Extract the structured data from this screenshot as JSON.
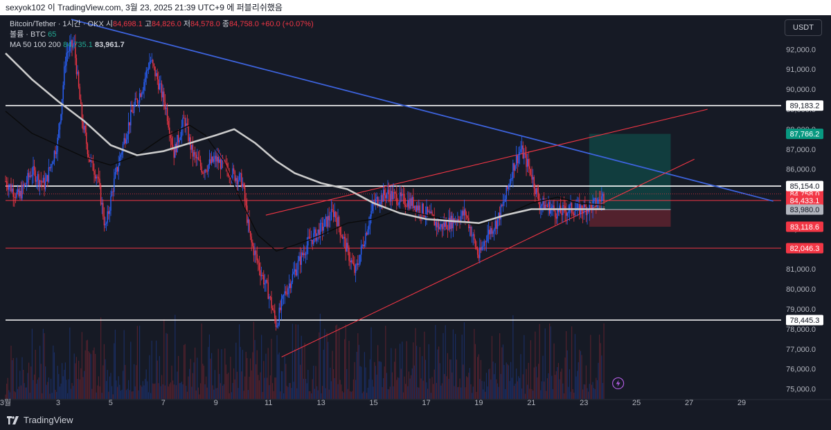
{
  "header": {
    "text": "sexyok102 이 TradingView.com, 3월 23, 2025 21:39 UTC+9 에 퍼블리쉬했음"
  },
  "legend": {
    "line1": {
      "symbol": "Bitcoin/Tether · 1시간 · OKX",
      "open_label": "시",
      "open": "84,698.1",
      "high_label": "고",
      "high": "84,826.0",
      "low_label": "저",
      "low": "84,578.0",
      "close_label": "종",
      "close": "84,758.0",
      "change": "+60.0 (+0.07%)"
    },
    "line2": {
      "label": "볼륨 · BTC",
      "value": "65"
    },
    "line3": {
      "label": "MA 50 100 200",
      "value1": "84,735.1",
      "value2": "83,961.7"
    }
  },
  "currency_button": "USDT",
  "footer_brand": "TradingView",
  "colors": {
    "background": "#161a25",
    "up": "#2962ff",
    "down": "#f23645",
    "white_level": "#ffffff",
    "red_level": "#f23645",
    "trendline": "#3d63dd",
    "ma_fast": "#0a0a0a",
    "ma_slow": "#cccccc"
  },
  "chart_data": {
    "type": "candlestick",
    "title": "Bitcoin/Tether · 1시간 · OKX",
    "y_axis_ticks": [
      "92,000.0",
      "91,000.0",
      "90,000.0",
      "89,000.0",
      "88,000.0",
      "87,000.0",
      "86,000.0",
      "85,000.0",
      "84,000.0",
      "83,000.0",
      "82,000.0",
      "81,000.0",
      "80,000.0",
      "79,000.0",
      "78,000.0",
      "77,000.0",
      "76,000.0",
      "75,000.0"
    ],
    "y_range": [
      74500,
      92600
    ],
    "x_axis_ticks": [
      {
        "label": "3월",
        "day": 1
      },
      {
        "label": "3",
        "day": 3
      },
      {
        "label": "5",
        "day": 5
      },
      {
        "label": "7",
        "day": 7
      },
      {
        "label": "9",
        "day": 9
      },
      {
        "label": "11",
        "day": 11
      },
      {
        "label": "13",
        "day": 13
      },
      {
        "label": "15",
        "day": 15
      },
      {
        "label": "17",
        "day": 17
      },
      {
        "label": "19",
        "day": 19
      },
      {
        "label": "21",
        "day": 21
      },
      {
        "label": "23",
        "day": 23
      },
      {
        "label": "25",
        "day": 25
      },
      {
        "label": "27",
        "day": 27
      },
      {
        "label": "29",
        "day": 29
      }
    ],
    "x_range_days": [
      1,
      30.5
    ],
    "price_path": [
      [
        1,
        85400
      ],
      [
        1.5,
        84600
      ],
      [
        2,
        85900
      ],
      [
        2.5,
        85200
      ],
      [
        3,
        87500
      ],
      [
        3.3,
        91800
      ],
      [
        3.6,
        92300
      ],
      [
        3.9,
        88500
      ],
      [
        4.2,
        86500
      ],
      [
        4.5,
        85600
      ],
      [
        4.8,
        83000
      ],
      [
        5.1,
        85200
      ],
      [
        5.5,
        87400
      ],
      [
        5.8,
        88800
      ],
      [
        6.2,
        90100
      ],
      [
        6.5,
        91500
      ],
      [
        6.8,
        90400
      ],
      [
        7.1,
        89100
      ],
      [
        7.4,
        86800
      ],
      [
        7.8,
        88500
      ],
      [
        8.1,
        86800
      ],
      [
        8.5,
        86000
      ],
      [
        9,
        86500
      ],
      [
        9.5,
        85900
      ],
      [
        10,
        85400
      ],
      [
        10.3,
        82500
      ],
      [
        10.7,
        80900
      ],
      [
        11,
        79800
      ],
      [
        11.3,
        78200
      ],
      [
        11.6,
        79700
      ],
      [
        12,
        80900
      ],
      [
        12.5,
        82300
      ],
      [
        13,
        83000
      ],
      [
        13.5,
        83900
      ],
      [
        14,
        81900
      ],
      [
        14.3,
        80800
      ],
      [
        14.6,
        82300
      ],
      [
        15,
        84300
      ],
      [
        15.5,
        84800
      ],
      [
        16,
        84500
      ],
      [
        16.5,
        84300
      ],
      [
        17,
        83800
      ],
      [
        17.5,
        83100
      ],
      [
        18,
        83400
      ],
      [
        18.5,
        83800
      ],
      [
        19,
        81600
      ],
      [
        19.3,
        82700
      ],
      [
        19.7,
        83400
      ],
      [
        20,
        84500
      ],
      [
        20.3,
        86100
      ],
      [
        20.6,
        87000
      ],
      [
        21,
        85800
      ],
      [
        21.3,
        84300
      ],
      [
        21.7,
        84100
      ],
      [
        22,
        83800
      ],
      [
        22.5,
        84000
      ],
      [
        23,
        84000
      ],
      [
        23.5,
        84300
      ],
      [
        23.8,
        84758
      ]
    ],
    "series": [
      {
        "name": "MA 50",
        "points": [
          [
            1,
            88900
          ],
          [
            2,
            87800
          ],
          [
            3,
            87200
          ],
          [
            4,
            86600
          ],
          [
            5,
            86200
          ],
          [
            6,
            86700
          ],
          [
            7,
            87600
          ],
          [
            8,
            88200
          ],
          [
            8.6,
            87700
          ],
          [
            9.3,
            86400
          ],
          [
            10,
            84300
          ],
          [
            10.6,
            82700
          ],
          [
            11.3,
            81900
          ],
          [
            12,
            82200
          ],
          [
            13,
            82700
          ],
          [
            14,
            83300
          ],
          [
            15,
            83500
          ],
          [
            16,
            84000
          ],
          [
            17,
            83700
          ],
          [
            18,
            83400
          ],
          [
            19,
            83200
          ],
          [
            20,
            83700
          ],
          [
            21,
            84300
          ],
          [
            22,
            84600
          ],
          [
            22.8,
            84300
          ],
          [
            23.8,
            84200
          ]
        ]
      },
      {
        "name": "MA 100",
        "points": [
          [
            1,
            91800
          ],
          [
            2,
            90500
          ],
          [
            3,
            89400
          ],
          [
            4,
            88400
          ],
          [
            5,
            87200
          ],
          [
            6,
            86700
          ],
          [
            7,
            86900
          ],
          [
            8,
            87300
          ],
          [
            9,
            87700
          ],
          [
            9.7,
            88000
          ],
          [
            10.5,
            87300
          ],
          [
            11.3,
            86400
          ],
          [
            12,
            85800
          ],
          [
            13,
            85300
          ],
          [
            14,
            85000
          ],
          [
            15,
            84300
          ],
          [
            16,
            83800
          ],
          [
            17,
            83500
          ],
          [
            18,
            83400
          ],
          [
            19,
            83300
          ],
          [
            20,
            83700
          ],
          [
            21,
            84000
          ],
          [
            22,
            84000
          ],
          [
            23,
            84000
          ],
          [
            23.8,
            84000
          ]
        ]
      }
    ],
    "volume_note": "BTC volume histogram",
    "horizontal_levels": [
      {
        "price": 89183.2,
        "label": "89,183.2",
        "color": "white"
      },
      {
        "price": 85154.0,
        "label": "85,154.0",
        "color": "white"
      },
      {
        "price": 84433.1,
        "label": "84,433.1",
        "color": "red"
      },
      {
        "price": 82046.3,
        "label": "82,046.3",
        "color": "red"
      },
      {
        "price": 78445.3,
        "label": "78,445.3",
        "color": "white"
      }
    ],
    "price_labels": [
      {
        "label": "87,766.2",
        "price": 87766.2,
        "color": "#089981"
      },
      {
        "label": "84,758.0",
        "sub": "21:00",
        "price": 84758.0,
        "color": "#f23645"
      },
      {
        "label": "84,433.1",
        "price": 84433.1,
        "color": "#f23645"
      },
      {
        "label": "83,980.0",
        "price": 83980.0,
        "color": "#b2b5be"
      },
      {
        "label": "83,118.6",
        "price": 83118.6,
        "color": "#f23645"
      },
      {
        "label": "89,183.2",
        "price": 89183.2,
        "color": "#ffffff"
      },
      {
        "label": "85,154.0",
        "price": 85154.0,
        "color": "#ffffff"
      },
      {
        "label": "82,046.3",
        "price": 82046.3,
        "color": "#f23645"
      },
      {
        "label": "78,445.3",
        "price": 78445.3,
        "color": "#ffffff"
      }
    ],
    "trendlines": [
      {
        "name": "descending",
        "from": [
          3.5,
          93500
        ],
        "to": [
          30.2,
          84400
        ],
        "color": "blue"
      },
      {
        "name": "upper wedge",
        "from": [
          10.9,
          83700
        ],
        "to": [
          27.7,
          89000
        ],
        "color": "red"
      },
      {
        "name": "lower wedge",
        "from": [
          11.5,
          76600
        ],
        "to": [
          27.2,
          86500
        ],
        "color": "red"
      }
    ],
    "position": {
      "entry": 83980.0,
      "target": 87766.2,
      "stop": 83118.6,
      "start_day": 23.2,
      "end_day": 26.3
    },
    "grid": false
  }
}
